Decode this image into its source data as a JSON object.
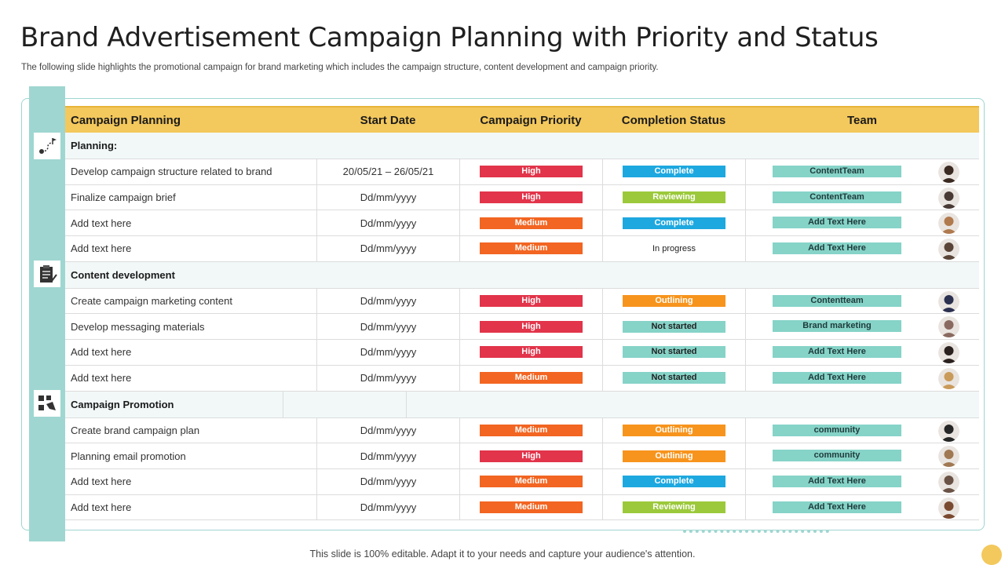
{
  "title": "Brand Advertisement Campaign Planning with Priority and Status",
  "subtitle": "The following slide highlights the promotional campaign for brand marketing which includes the campaign structure,  content development and campaign priority.",
  "headers": {
    "planning": "Campaign Planning",
    "start": "Start Date",
    "priority": "Campaign Priority",
    "status": "Completion Status",
    "team": "Team"
  },
  "colors": {
    "header": "#f3c85c",
    "accent_teal": "#9fd6d1",
    "team_pill": "#86d3c8",
    "high": "#e2344a",
    "medium": "#f26522",
    "complete": "#1ea8e0",
    "reviewing": "#9cc93b",
    "outlining": "#f7941d",
    "not_started": "#86d3c8"
  },
  "sections": [
    {
      "name": "Planning:",
      "icon": "roadmap-icon",
      "rows": [
        {
          "task": "Develop  campaign structure related to brand",
          "date": "20/05/21 – 26/05/21",
          "priority": "High",
          "status": "Complete",
          "team": "ContentTeam",
          "avatar": "#3a2a22"
        },
        {
          "task": "Finalize campaign  brief",
          "date": "Dd/mm/yyyy",
          "priority": "High",
          "status": "Reviewing",
          "team": "ContentTeam",
          "avatar": "#4a3a36"
        },
        {
          "task": "Add text here",
          "date": "Dd/mm/yyyy",
          "priority": "Medium",
          "status": "Complete",
          "team": "Add Text Here",
          "avatar": "#b07a4e"
        },
        {
          "task": "Add text here",
          "date": "Dd/mm/yyyy",
          "priority": "Medium",
          "status": "In progress",
          "team": "Add Text Here",
          "avatar": "#5a4438"
        }
      ]
    },
    {
      "name": "Content development",
      "icon": "clipboard-icon",
      "rows": [
        {
          "task": "Create campaign marketing content",
          "date": "Dd/mm/yyyy",
          "priority": "High",
          "status": "Outlining",
          "team": "Contentteam",
          "avatar": "#2c3150"
        },
        {
          "task": "Develop  messaging materials",
          "date": "Dd/mm/yyyy",
          "priority": "High",
          "status": "Not started",
          "team": "Brand marketing",
          "avatar": "#8a6a60"
        },
        {
          "task": "Add text here",
          "date": "Dd/mm/yyyy",
          "priority": "High",
          "status": "Not started",
          "team": "Add Text Here",
          "avatar": "#2b2220"
        },
        {
          "task": "Add text here",
          "date": "Dd/mm/yyyy",
          "priority": "Medium",
          "status": "Not started",
          "team": "Add Text Here",
          "avatar": "#c99a5a"
        }
      ]
    },
    {
      "name": "Campaign Promotion",
      "icon": "megaphone-icon",
      "rows": [
        {
          "task": "Create brand campaign plan",
          "date": "Dd/mm/yyyy",
          "priority": "Medium",
          "status": "Outlining",
          "team": "community",
          "avatar": "#262626"
        },
        {
          "task": "Planning email promotion",
          "date": "Dd/mm/yyyy",
          "priority": "High",
          "status": "Outlining",
          "team": "community",
          "avatar": "#a07852"
        },
        {
          "task": "Add text here",
          "date": "Dd/mm/yyyy",
          "priority": "Medium",
          "status": "Complete",
          "team": "Add Text Here",
          "avatar": "#6a5346"
        },
        {
          "task": "Add text here",
          "date": "Dd/mm/yyyy",
          "priority": "Medium",
          "status": "Reviewing",
          "team": "Add Text Here",
          "avatar": "#7a4a30"
        }
      ]
    }
  ],
  "footer": "This slide is 100% editable. Adapt it to your needs and capture your audience's attention."
}
